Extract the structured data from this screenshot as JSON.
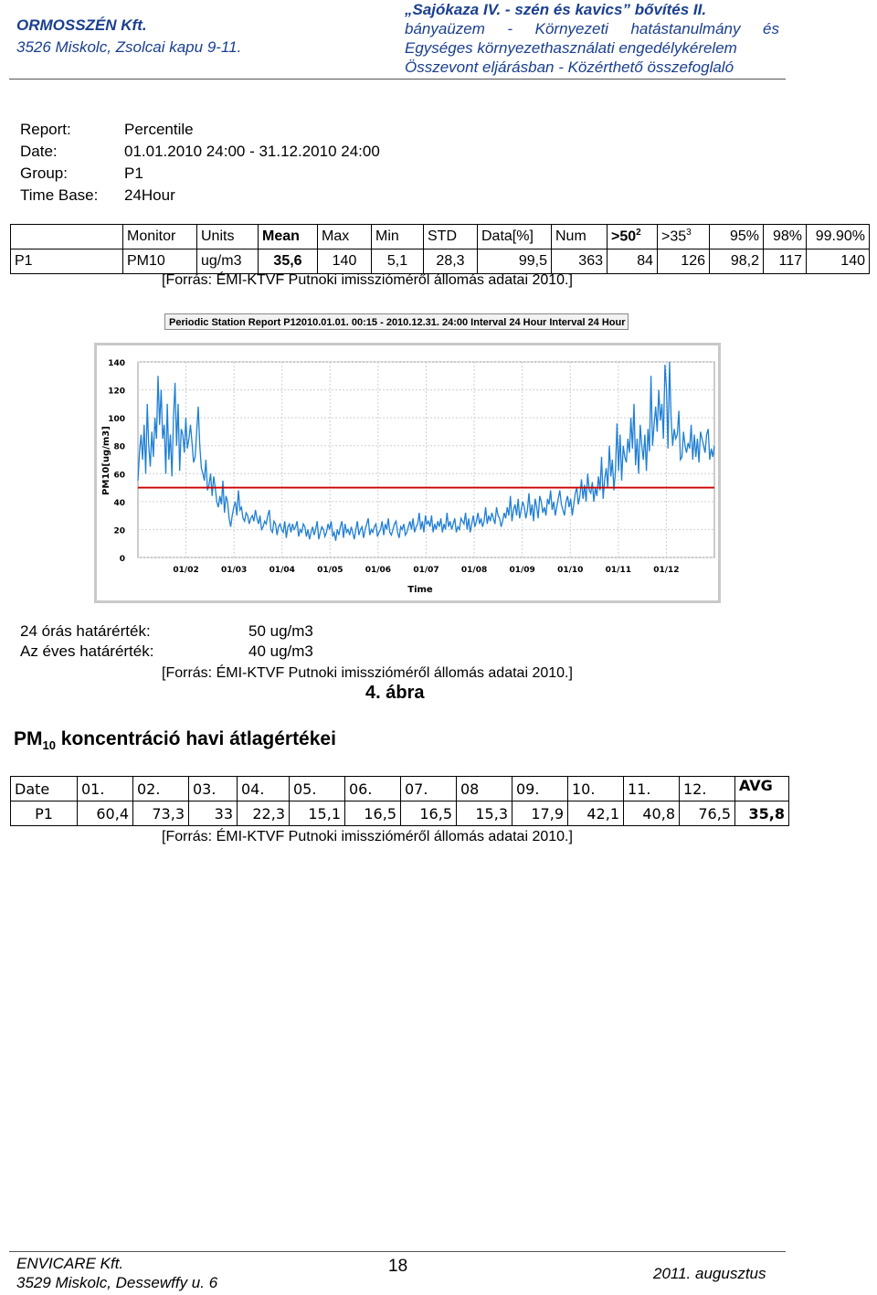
{
  "header": {
    "company": "ORMOSSZÉN Kft.",
    "address": "3526 Miskolc, Zsolcai kapu 9-11.",
    "project_line1": "„Sajókaza IV. - szén és kavics” bővítés II.",
    "project_line2": "bányaüzem - Környezeti hatástanulmány és",
    "project_line3": "Egységes környezethasználati engedélykérelem",
    "project_line4": "Összevont eljárásban - Közérthető összefoglaló"
  },
  "report": {
    "report_label": "Report:",
    "report_value": "Percentile",
    "date_label": "Date:",
    "date_value": "01.01.2010 24:00 - 31.12.2010 24:00",
    "group_label": "Group:",
    "group_value": "P1",
    "timebase_label": "Time Base:",
    "timebase_value": "24Hour"
  },
  "percentile_table": {
    "headers": [
      "Monitor",
      "Units",
      "Mean",
      "Max",
      "Min",
      "STD",
      "Data[%]",
      "Num",
      ">50",
      "2",
      ">35",
      "3",
      "95%",
      "98%",
      "99.90%"
    ],
    "row_label": "P1",
    "row": [
      "PM10",
      "ug/m3",
      "35,6",
      "140",
      "5,1",
      "28,3",
      "99,5",
      "363",
      "84",
      "126",
      "98,2",
      "117",
      "140"
    ]
  },
  "source_note": "[Forrás: ÉMI-KTVF Putnoki imisszióméről állomás adatai 2010.]",
  "chart_data": {
    "type": "line",
    "title": "Periodic Station Report P12010.01.01. 00:15 - 2010.12.31. 24:00 Interval 24 Hour Interval 24 Hour",
    "xlabel": "Time",
    "ylabel": "PM10[ug/m3]",
    "ylim": [
      0,
      140
    ],
    "yticks": [
      "0",
      "20",
      "40",
      "60",
      "80",
      "100",
      "120",
      "140"
    ],
    "xticks": [
      "01/02",
      "01/03",
      "01/04",
      "01/05",
      "01/06",
      "01/07",
      "01/08",
      "01/09",
      "01/10",
      "01/11",
      "01/12"
    ],
    "threshold": 50,
    "series": [
      {
        "values": [
          55,
          75,
          88,
          70,
          95,
          60,
          110,
          80,
          65,
          90,
          72,
          100,
          85,
          130,
          95,
          120,
          85,
          95,
          60,
          110,
          70,
          88,
          58,
          100,
          125,
          80,
          110,
          62,
          92,
          88,
          75,
          100,
          78,
          85,
          95,
          82,
          68,
          72,
          90,
          108,
          80,
          64,
          60,
          55,
          70,
          48,
          52,
          60,
          44,
          58,
          50,
          40,
          36,
          44,
          38,
          55,
          32,
          44,
          40,
          28,
          22,
          30,
          36,
          40,
          30,
          48,
          34,
          36,
          28,
          26,
          32,
          30,
          24,
          28,
          30,
          26,
          34,
          28,
          24,
          30,
          20,
          22,
          26,
          24,
          30,
          34,
          20,
          18,
          26,
          24,
          16,
          22,
          24,
          20,
          18,
          26,
          14,
          22,
          24,
          18,
          24,
          20,
          22,
          26,
          15,
          20,
          18,
          24,
          22,
          15,
          20,
          13,
          18,
          22,
          16,
          20,
          26,
          13,
          18,
          22,
          20,
          15,
          18,
          24,
          20,
          26,
          15,
          18,
          12,
          20,
          16,
          22,
          26,
          14,
          24,
          18,
          20,
          16,
          22,
          18,
          13,
          20,
          26,
          16,
          20,
          22,
          14,
          20,
          24,
          28,
          16,
          20,
          18,
          22,
          24,
          15,
          18,
          20,
          26,
          16,
          24,
          20,
          28,
          18,
          16,
          20,
          24,
          26,
          18,
          14,
          22,
          20,
          24,
          16,
          18,
          22,
          26,
          20,
          28,
          18,
          22,
          24,
          32,
          20,
          26,
          18,
          30,
          24,
          26,
          22,
          30,
          18,
          24,
          20,
          26,
          22,
          28,
          18,
          24,
          20,
          32,
          22,
          26,
          20,
          24,
          28,
          18,
          22,
          20,
          28,
          26,
          24,
          32,
          20,
          28,
          18,
          24,
          30,
          22,
          26,
          32,
          24,
          28,
          22,
          26,
          36,
          24,
          30,
          26,
          32,
          28,
          24,
          36,
          30,
          28,
          22,
          26,
          32,
          28,
          36,
          30,
          44,
          26,
          34,
          38,
          30,
          42,
          28,
          34,
          40,
          36,
          28,
          34,
          46,
          30,
          38,
          26,
          42,
          36,
          28,
          44,
          40,
          32,
          36,
          30,
          42,
          38,
          48,
          34,
          40,
          30,
          36,
          42,
          48,
          38,
          34,
          30,
          40,
          44,
          36,
          42,
          30,
          38,
          46,
          50,
          38,
          44,
          56,
          42,
          52,
          40,
          60,
          48,
          46,
          54,
          40,
          50,
          44,
          58,
          48,
          72,
          42,
          56,
          64,
          50,
          80,
          58,
          70,
          48,
          62,
          96,
          62,
          88,
          55,
          80,
          72,
          68,
          85,
          75,
          100,
          78,
          110,
          66,
          85,
          60,
          95,
          80,
          70,
          88,
          62,
          92,
          76,
          130,
          80,
          95,
          108,
          90,
          120,
          98,
          110,
          85,
          138,
          120,
          78,
          140,
          100,
          80,
          92,
          85,
          88,
          105,
          70,
          72,
          90,
          80,
          75,
          82,
          78,
          95,
          70,
          88,
          72,
          85,
          68,
          90,
          85,
          80,
          75,
          88,
          92,
          70,
          78,
          72,
          80
        ]
      }
    ]
  },
  "limits": {
    "daily_label": "24 órás határérték:",
    "daily_value": "50  ug/m3",
    "annual_label": "Az éves határérték:",
    "annual_value": "40  ug/m3"
  },
  "figure_label": "4. ábra",
  "section": {
    "title_pre": "PM",
    "title_sub": "10",
    "title_post": " koncentráció havi átlagértékei"
  },
  "monthly_table": {
    "header_label": "Date",
    "months": [
      "01.",
      "02.",
      "03.",
      "04.",
      "05.",
      "06.",
      "07.",
      "08",
      "09.",
      "10.",
      "11.",
      "12.",
      "AVG"
    ],
    "row_label": "P1",
    "values": [
      "60,4",
      "73,3",
      "33",
      "22,3",
      "15,1",
      "16,5",
      "16,5",
      "15,3",
      "17,9",
      "42,1",
      "40,8",
      "76,5",
      "35,8"
    ]
  },
  "footer": {
    "company": "ENVICARE Kft.",
    "address": "3529 Miskolc, Dessewffy u. 6",
    "page": "18",
    "date": "2011. augusztus"
  },
  "colors": {
    "series": "#1f7fd4",
    "threshold": "#cc0000",
    "header_text": "#1a3f8f"
  }
}
